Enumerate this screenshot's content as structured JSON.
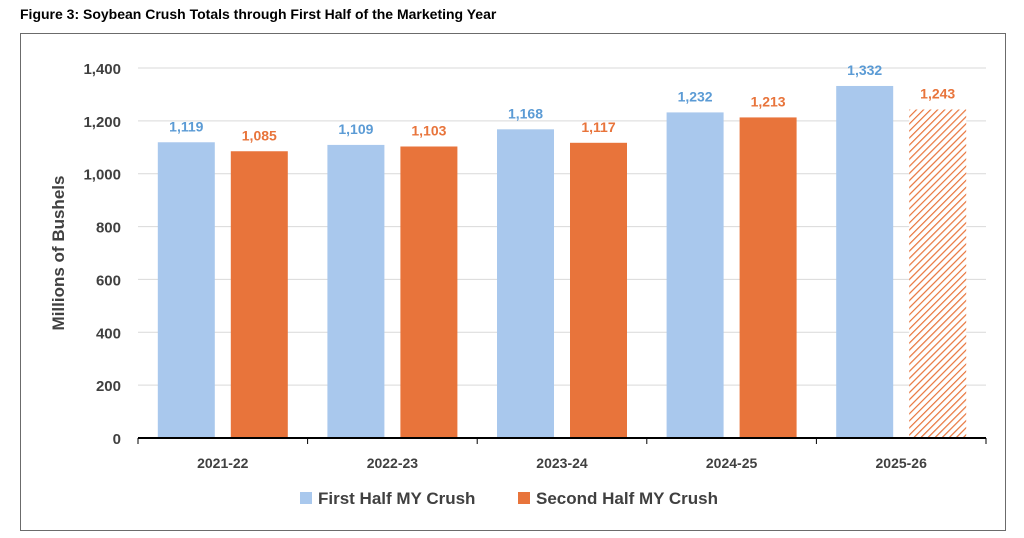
{
  "figure_title": "Figure 3: Soybean Crush Totals through First Half of the Marketing Year",
  "colors": {
    "first_half": "#a9c8ed",
    "first_half_label": "#5b9bd5",
    "second_half": "#e8743b",
    "second_half_label": "#e8743b",
    "grid": "#d9d9d9",
    "axis": "#000000",
    "text": "#404040"
  },
  "chart_data": {
    "type": "bar",
    "title": "",
    "xlabel": "",
    "ylabel": "Millions of Bushels",
    "ylim": [
      0,
      1400
    ],
    "yticks": [
      0,
      200,
      400,
      600,
      800,
      1000,
      1200,
      1400
    ],
    "ytick_labels": [
      "0",
      "200",
      "400",
      "600",
      "800",
      "1,000",
      "1,200",
      "1,400"
    ],
    "grid": true,
    "legend_position": "bottom",
    "categories": [
      "2021-22",
      "2022-23",
      "2023-24",
      "2024-25",
      "2025-26"
    ],
    "series": [
      {
        "name": "First Half MY Crush",
        "values": [
          1119,
          1109,
          1168,
          1232,
          1332
        ],
        "labels": [
          "1,119",
          "1,109",
          "1,168",
          "1,232",
          "1,332"
        ],
        "projected": [
          false,
          false,
          false,
          false,
          false
        ]
      },
      {
        "name": "Second Half MY Crush",
        "values": [
          1085,
          1103,
          1117,
          1213,
          1243
        ],
        "labels": [
          "1,085",
          "1,103",
          "1,117",
          "1,213",
          "1,243"
        ],
        "projected": [
          false,
          false,
          false,
          false,
          true
        ]
      }
    ]
  }
}
